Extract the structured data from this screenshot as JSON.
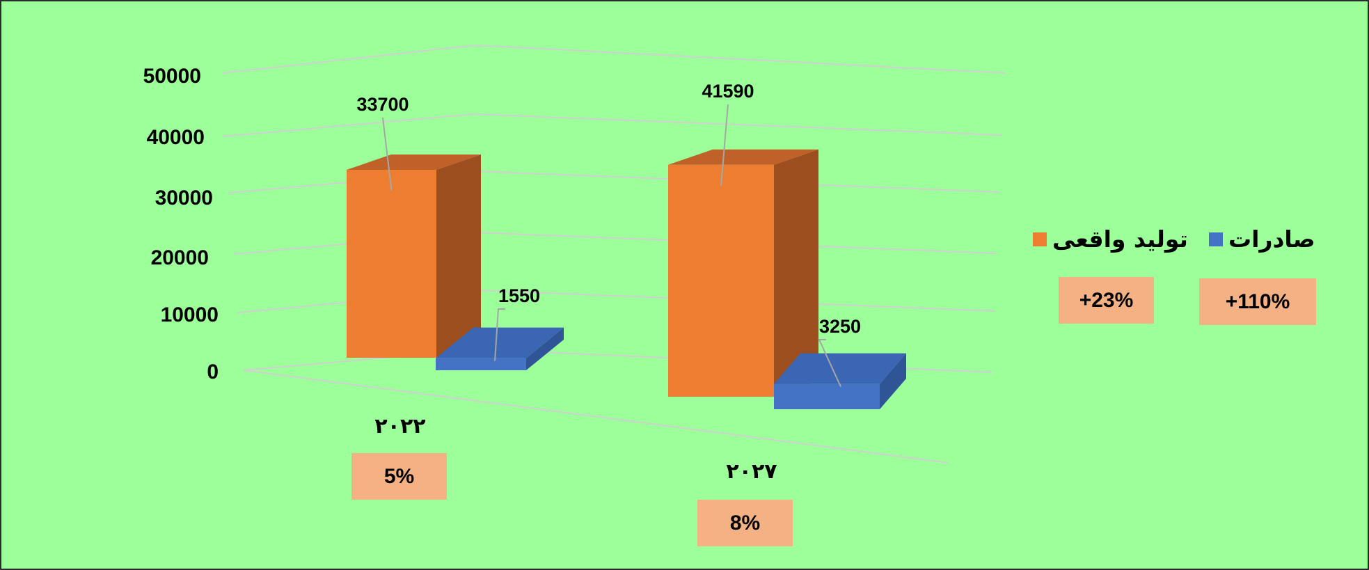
{
  "chart_data": {
    "type": "bar",
    "categories": [
      "۲۰۲۲",
      "۲۰۲۷"
    ],
    "series": [
      {
        "name": "تولید واقعی",
        "values": [
          33700,
          41590
        ],
        "color": "#ed7d31"
      },
      {
        "name": "صادرات",
        "values": [
          1550,
          3250
        ],
        "color": "#4472c4"
      }
    ],
    "ylim": [
      0,
      50000
    ],
    "yticks": [
      "0",
      "10000",
      "20000",
      "30000",
      "40000",
      "50000"
    ],
    "grid": true,
    "legend_position": "right",
    "data_labels": [
      "33700",
      "41590",
      "1550",
      "3250"
    ]
  },
  "badges": {
    "category_growth": [
      "5%",
      "8%"
    ],
    "series_growth": {
      "production": "+23%",
      "exports": "+110%"
    }
  },
  "colors": {
    "background": "#9cff99",
    "badge": "#f4b183",
    "grid": "#d0d0d0"
  }
}
